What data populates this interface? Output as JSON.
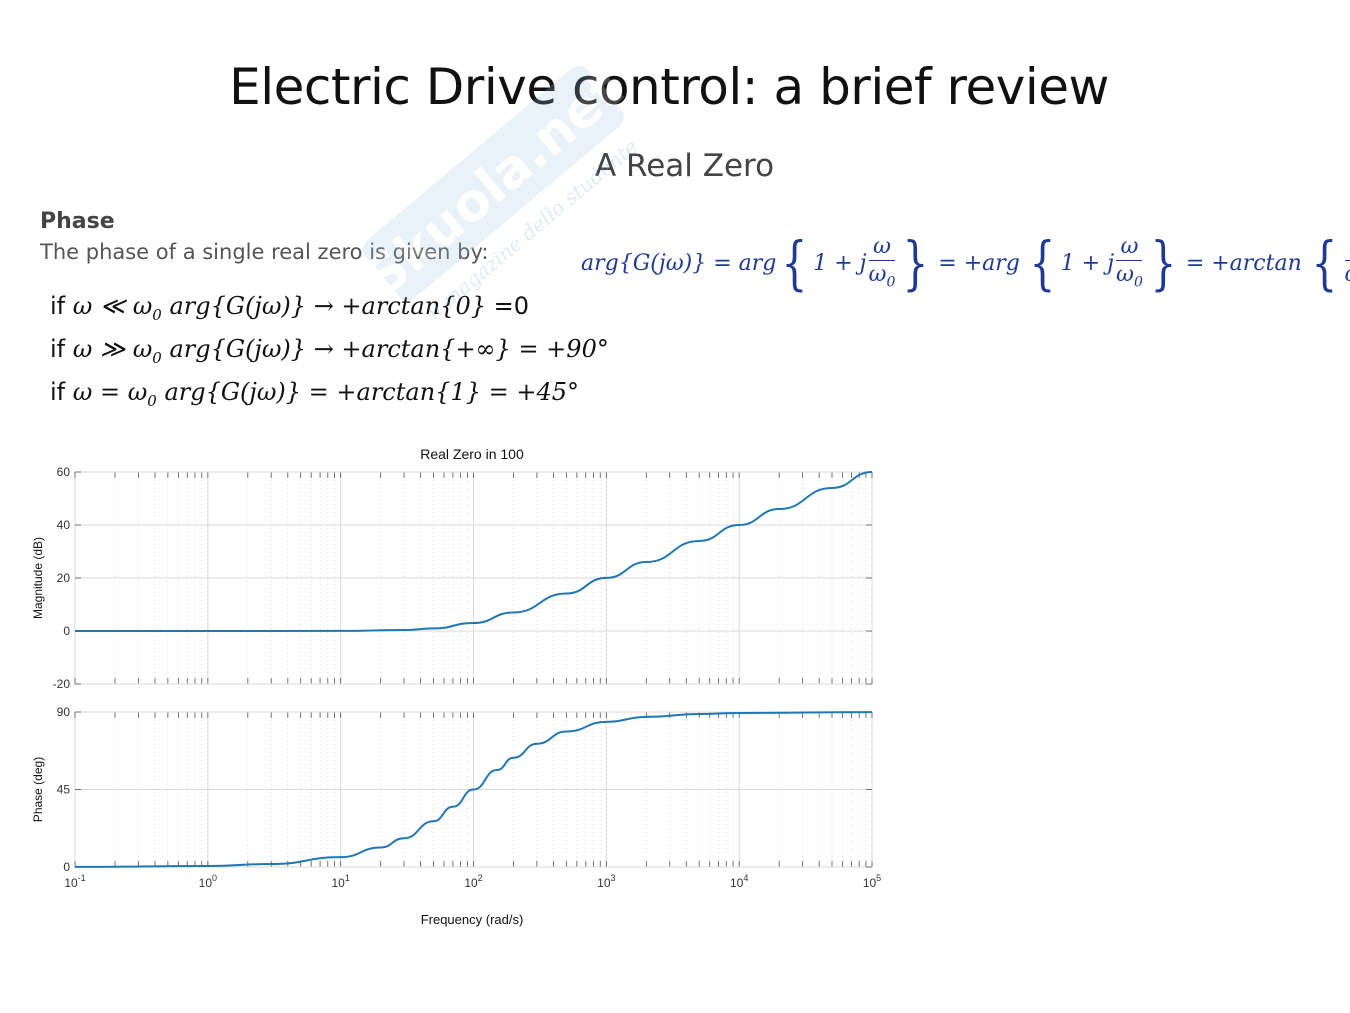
{
  "slide": {
    "title": "Electric Drive control: a brief review",
    "subtitle": "A Real Zero",
    "section_label": "Phase",
    "intro": "The phase of a single real zero is given by:"
  },
  "formula": {
    "lhs": "arg{G(jω)} = arg",
    "term1_prefix": "1 + j",
    "eq2": "= +arg",
    "term2_prefix": "1 + j",
    "eq3": "= +arctan",
    "frac_num": "ω",
    "frac_den": "ω",
    "frac_den_sub": "0"
  },
  "conditions": [
    {
      "if_word": "if",
      "cond_a": "ω ≪ ω",
      "cond_sub": "0",
      "expr": " arg{G(jω)} → +arctan{0}",
      "result": " =0"
    },
    {
      "if_word": "if",
      "cond_a": "ω ≫ ω",
      "cond_sub": "0",
      "expr": " arg{G(jω)} → +arctan{+∞} = +90°",
      "result": ""
    },
    {
      "if_word": "if",
      "cond_a": "ω = ω",
      "cond_sub": "0",
      "expr": " arg{G(jω)} =  +arctan{1} = +45°",
      "result": ""
    }
  ],
  "watermark": {
    "text": "Skuola.net",
    "slogan": "il magazine dello studente"
  },
  "colors": {
    "curve": "#1f77b4",
    "formula": "#1f3a93",
    "grid": "#d9d9d9"
  },
  "chart_data": [
    {
      "type": "line",
      "title": "Real Zero in 100",
      "xlabel": "",
      "ylabel": "Magnitude (dB)",
      "xscale": "log",
      "xlim": [
        0.1,
        100000
      ],
      "ylim": [
        -20,
        60
      ],
      "yticks": [
        "60",
        "40",
        "20",
        "0",
        "-20"
      ],
      "yticks_values": [
        60,
        40,
        20,
        0,
        -20
      ],
      "grid": true,
      "x": [
        0.1,
        1,
        10,
        30,
        50,
        100,
        200,
        500,
        1000,
        2000,
        5000,
        10000,
        20000,
        50000,
        100000
      ],
      "values": [
        0,
        0,
        0.04,
        0.37,
        0.97,
        3.01,
        6.99,
        14.15,
        20.04,
        26.03,
        33.98,
        40.0,
        46.02,
        53.98,
        60.0
      ]
    },
    {
      "type": "line",
      "title": "",
      "xlabel": "Frequency  (rad/s)",
      "ylabel": "Phase (deg)",
      "xscale": "log",
      "xlim": [
        0.1,
        100000
      ],
      "ylim": [
        0,
        90
      ],
      "xticks": [
        {
          "base": "10",
          "exp": "-1"
        },
        {
          "base": "10",
          "exp": "0"
        },
        {
          "base": "10",
          "exp": "1"
        },
        {
          "base": "10",
          "exp": "2"
        },
        {
          "base": "10",
          "exp": "3"
        },
        {
          "base": "10",
          "exp": "4"
        },
        {
          "base": "10",
          "exp": "5"
        }
      ],
      "yticks": [
        "90",
        "45",
        "0"
      ],
      "yticks_values": [
        90,
        45,
        0
      ],
      "grid": true,
      "x": [
        0.1,
        1,
        3,
        10,
        20,
        30,
        50,
        70,
        100,
        150,
        200,
        300,
        500,
        1000,
        2000,
        5000,
        10000,
        100000
      ],
      "values": [
        0.06,
        0.57,
        1.72,
        5.71,
        11.31,
        16.7,
        26.57,
        34.99,
        45.0,
        56.31,
        63.43,
        71.57,
        78.69,
        84.29,
        87.14,
        88.85,
        89.43,
        89.94
      ]
    }
  ]
}
